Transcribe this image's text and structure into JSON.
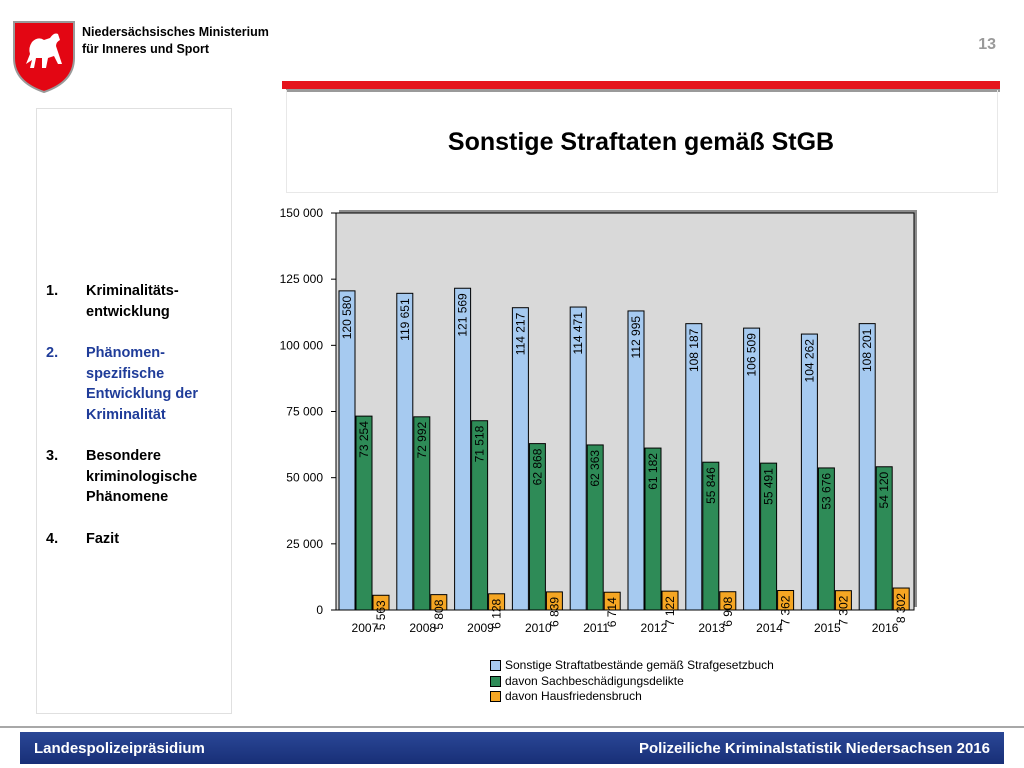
{
  "header": {
    "ministry_line1": "Niedersächsisches Ministerium",
    "ministry_line2": "für Inneres und Sport",
    "page_number": "13",
    "accent_color": "#e5141c"
  },
  "sidebar": {
    "items": [
      {
        "num": "1.",
        "label": "Kriminalitäts-entwicklung",
        "active": false
      },
      {
        "num": "2.",
        "label": "Phänomen-spezifische Entwicklung der Kriminalität",
        "active": true
      },
      {
        "num": "3.",
        "label": "Besondere kriminologische Phänomene",
        "active": false
      },
      {
        "num": "4.",
        "label": "Fazit",
        "active": false
      }
    ]
  },
  "footer": {
    "left": "Landespolizeipräsidium",
    "right": "Polizeiliche Kriminalstatistik Niedersachsen 2016"
  },
  "chart_data": {
    "type": "bar",
    "title": "Sonstige Straftaten gemäß StGB",
    "categories": [
      "2007",
      "2008",
      "2009",
      "2010",
      "2011",
      "2012",
      "2013",
      "2014",
      "2015",
      "2016"
    ],
    "series": [
      {
        "name": "Sonstige Straftatbestände gemäß Strafgesetzbuch",
        "color": "#a6caf0",
        "values": [
          120580,
          119651,
          121569,
          114217,
          114471,
          112995,
          108187,
          106509,
          104262,
          108201
        ],
        "labels": [
          "120 580",
          "119 651",
          "121 569",
          "114 217",
          "114 471",
          "112 995",
          "108 187",
          "106 509",
          "104 262",
          "108 201"
        ]
      },
      {
        "name": "davon Sachbeschädigungsdelikte",
        "color": "#2e8b57",
        "values": [
          73254,
          72992,
          71518,
          62868,
          62363,
          61182,
          55846,
          55491,
          53676,
          54120
        ],
        "labels": [
          "73 254",
          "72 992",
          "71 518",
          "62 868",
          "62 363",
          "61 182",
          "55 846",
          "55 491",
          "53 676",
          "54 120"
        ]
      },
      {
        "name": "davon Hausfriedensbruch",
        "color": "#f5a623",
        "values": [
          5563,
          5808,
          6128,
          6839,
          6714,
          7122,
          6908,
          7362,
          7302,
          8302
        ],
        "labels": [
          "5 563",
          "5 808",
          "6 128",
          "6 839",
          "6 714",
          "7 122",
          "6 908",
          "7 362",
          "7 302",
          "8 302"
        ]
      }
    ],
    "ylim": [
      0,
      150000
    ],
    "yticks": [
      0,
      25000,
      50000,
      75000,
      100000,
      125000,
      150000
    ],
    "ytick_labels": [
      "0",
      "25 000",
      "50 000",
      "75 000",
      "100 000",
      "125 000",
      "150 000"
    ],
    "plot_background": "#d9d9d9",
    "grid": false,
    "legend_position": "bottom"
  }
}
